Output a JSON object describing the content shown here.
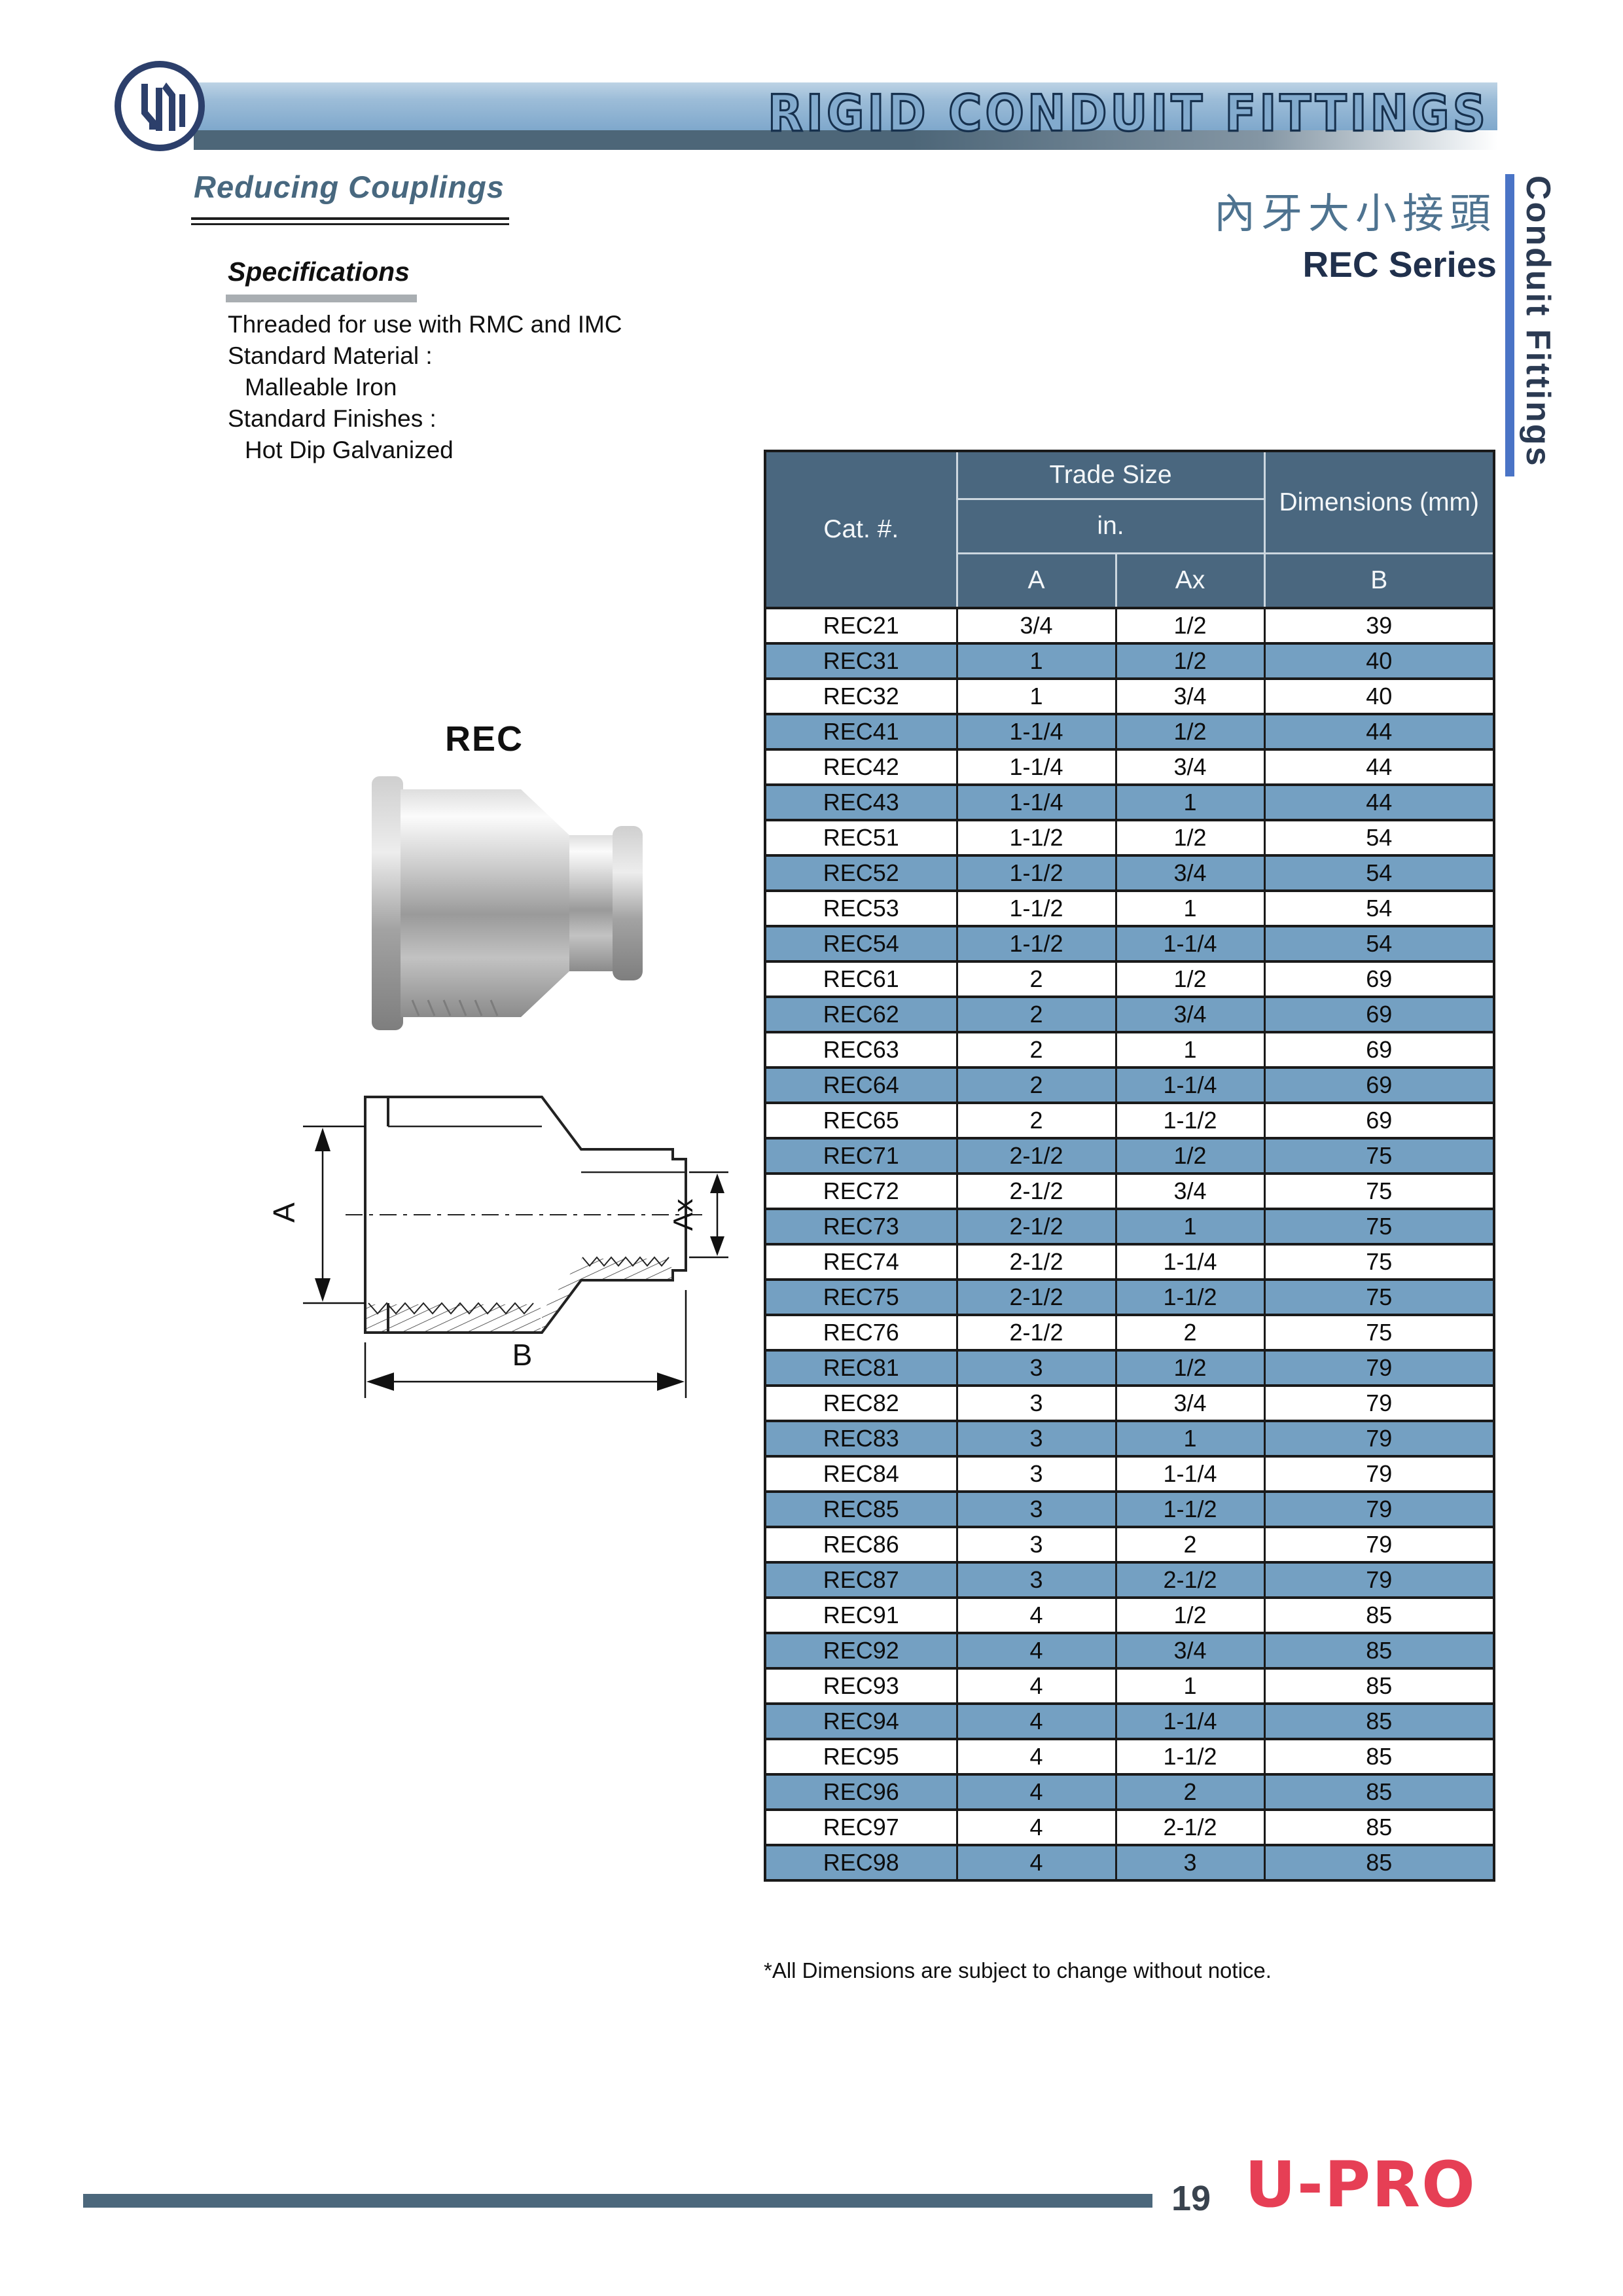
{
  "header": {
    "banner_title": "RIGID CONDUIT FITTINGS",
    "page_title": "Reducing Couplings",
    "chinese_title": "內牙大小接頭",
    "series_label": "REC Series",
    "side_tab": "Conduit Fittings"
  },
  "specifications": {
    "heading": "Specifications",
    "lines": [
      "Threaded for use with RMC and IMC",
      "Standard Material :",
      "Malleable Iron",
      "Standard Finishes :",
      "Hot Dip Galvanized"
    ]
  },
  "product": {
    "label": "REC"
  },
  "diagram": {
    "dim_a": "A",
    "dim_ax": "Ax",
    "dim_b": "B"
  },
  "table": {
    "col_cat": "Cat. #.",
    "col_trade_size": "Trade Size",
    "col_unit": "in.",
    "col_a": "A",
    "col_ax": "Ax",
    "col_dimensions": "Dimensions (mm)",
    "col_b": "B",
    "rows": [
      [
        "REC21",
        "3/4",
        "1/2",
        "39"
      ],
      [
        "REC31",
        "1",
        "1/2",
        "40"
      ],
      [
        "REC32",
        "1",
        "3/4",
        "40"
      ],
      [
        "REC41",
        "1-1/4",
        "1/2",
        "44"
      ],
      [
        "REC42",
        "1-1/4",
        "3/4",
        "44"
      ],
      [
        "REC43",
        "1-1/4",
        "1",
        "44"
      ],
      [
        "REC51",
        "1-1/2",
        "1/2",
        "54"
      ],
      [
        "REC52",
        "1-1/2",
        "3/4",
        "54"
      ],
      [
        "REC53",
        "1-1/2",
        "1",
        "54"
      ],
      [
        "REC54",
        "1-1/2",
        "1-1/4",
        "54"
      ],
      [
        "REC61",
        "2",
        "1/2",
        "69"
      ],
      [
        "REC62",
        "2",
        "3/4",
        "69"
      ],
      [
        "REC63",
        "2",
        "1",
        "69"
      ],
      [
        "REC64",
        "2",
        "1-1/4",
        "69"
      ],
      [
        "REC65",
        "2",
        "1-1/2",
        "69"
      ],
      [
        "REC71",
        "2-1/2",
        "1/2",
        "75"
      ],
      [
        "REC72",
        "2-1/2",
        "3/4",
        "75"
      ],
      [
        "REC73",
        "2-1/2",
        "1",
        "75"
      ],
      [
        "REC74",
        "2-1/2",
        "1-1/4",
        "75"
      ],
      [
        "REC75",
        "2-1/2",
        "1-1/2",
        "75"
      ],
      [
        "REC76",
        "2-1/2",
        "2",
        "75"
      ],
      [
        "REC81",
        "3",
        "1/2",
        "79"
      ],
      [
        "REC82",
        "3",
        "3/4",
        "79"
      ],
      [
        "REC83",
        "3",
        "1",
        "79"
      ],
      [
        "REC84",
        "3",
        "1-1/4",
        "79"
      ],
      [
        "REC85",
        "3",
        "1-1/2",
        "79"
      ],
      [
        "REC86",
        "3",
        "2",
        "79"
      ],
      [
        "REC87",
        "3",
        "2-1/2",
        "79"
      ],
      [
        "REC91",
        "4",
        "1/2",
        "85"
      ],
      [
        "REC92",
        "4",
        "3/4",
        "85"
      ],
      [
        "REC93",
        "4",
        "1",
        "85"
      ],
      [
        "REC94",
        "4",
        "1-1/4",
        "85"
      ],
      [
        "REC95",
        "4",
        "1-1/2",
        "85"
      ],
      [
        "REC96",
        "4",
        "2",
        "85"
      ],
      [
        "REC97",
        "4",
        "2-1/2",
        "85"
      ],
      [
        "REC98",
        "4",
        "3",
        "85"
      ]
    ]
  },
  "footnote": "*All Dimensions are subject to change without notice.",
  "footer": {
    "page_number": "19",
    "brand": "U-PRO"
  },
  "colors": {
    "table_header": "#4a677f",
    "table_row_blue": "#74a0c2",
    "banner_light_blue": "#9dbdd8",
    "banner_strip": "#4d6678",
    "side_bar_blue": "#4a74c6",
    "title_steel_blue": "#48687f",
    "brand_red": "#e63f55",
    "series_navy": "#20304c"
  }
}
